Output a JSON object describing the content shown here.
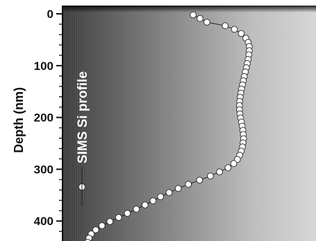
{
  "chart_data": {
    "type": "line",
    "title": "",
    "xlabel": "",
    "ylabel": "Depth (nm)",
    "ylim": [
      0,
      445
    ],
    "y_inverted": true,
    "y_ticks": [
      0,
      100,
      200,
      300,
      400
    ],
    "legend": {
      "label": "SIMS Si profile",
      "orientation": "vertical",
      "placement": "left"
    },
    "x_units": "relative Si concentration (arbitrary, no axis shown)",
    "series": [
      {
        "name": "SIMS Si profile",
        "marker": "circle",
        "marker_fill": "#ffffff",
        "points": [
          {
            "x": 0.57,
            "y": 2
          },
          {
            "x": 0.6,
            "y": 9
          },
          {
            "x": 0.63,
            "y": 16
          },
          {
            "x": 0.71,
            "y": 23
          },
          {
            "x": 0.75,
            "y": 30
          },
          {
            "x": 0.78,
            "y": 38
          },
          {
            "x": 0.8,
            "y": 47
          },
          {
            "x": 0.81,
            "y": 55
          },
          {
            "x": 0.815,
            "y": 63
          },
          {
            "x": 0.815,
            "y": 71
          },
          {
            "x": 0.813,
            "y": 79
          },
          {
            "x": 0.81,
            "y": 88
          },
          {
            "x": 0.806,
            "y": 96
          },
          {
            "x": 0.802,
            "y": 104
          },
          {
            "x": 0.798,
            "y": 112
          },
          {
            "x": 0.793,
            "y": 121
          },
          {
            "x": 0.789,
            "y": 129
          },
          {
            "x": 0.785,
            "y": 137
          },
          {
            "x": 0.781,
            "y": 145
          },
          {
            "x": 0.778,
            "y": 153
          },
          {
            "x": 0.775,
            "y": 161
          },
          {
            "x": 0.773,
            "y": 169
          },
          {
            "x": 0.772,
            "y": 177
          },
          {
            "x": 0.772,
            "y": 185
          },
          {
            "x": 0.774,
            "y": 193
          },
          {
            "x": 0.777,
            "y": 201
          },
          {
            "x": 0.781,
            "y": 209
          },
          {
            "x": 0.784,
            "y": 217
          },
          {
            "x": 0.787,
            "y": 225
          },
          {
            "x": 0.789,
            "y": 233
          },
          {
            "x": 0.79,
            "y": 241
          },
          {
            "x": 0.788,
            "y": 249
          },
          {
            "x": 0.785,
            "y": 257
          },
          {
            "x": 0.78,
            "y": 265
          },
          {
            "x": 0.773,
            "y": 273
          },
          {
            "x": 0.763,
            "y": 281
          },
          {
            "x": 0.747,
            "y": 289
          },
          {
            "x": 0.722,
            "y": 297
          },
          {
            "x": 0.685,
            "y": 305
          },
          {
            "x": 0.645,
            "y": 313
          },
          {
            "x": 0.598,
            "y": 321
          },
          {
            "x": 0.549,
            "y": 329
          },
          {
            "x": 0.505,
            "y": 337
          },
          {
            "x": 0.465,
            "y": 345
          },
          {
            "x": 0.428,
            "y": 353
          },
          {
            "x": 0.395,
            "y": 361
          },
          {
            "x": 0.36,
            "y": 369
          },
          {
            "x": 0.322,
            "y": 377
          },
          {
            "x": 0.283,
            "y": 385
          },
          {
            "x": 0.245,
            "y": 393
          },
          {
            "x": 0.207,
            "y": 401
          },
          {
            "x": 0.172,
            "y": 409
          },
          {
            "x": 0.145,
            "y": 417
          },
          {
            "x": 0.125,
            "y": 425
          },
          {
            "x": 0.115,
            "y": 433
          },
          {
            "x": 0.11,
            "y": 441
          }
        ]
      }
    ]
  }
}
